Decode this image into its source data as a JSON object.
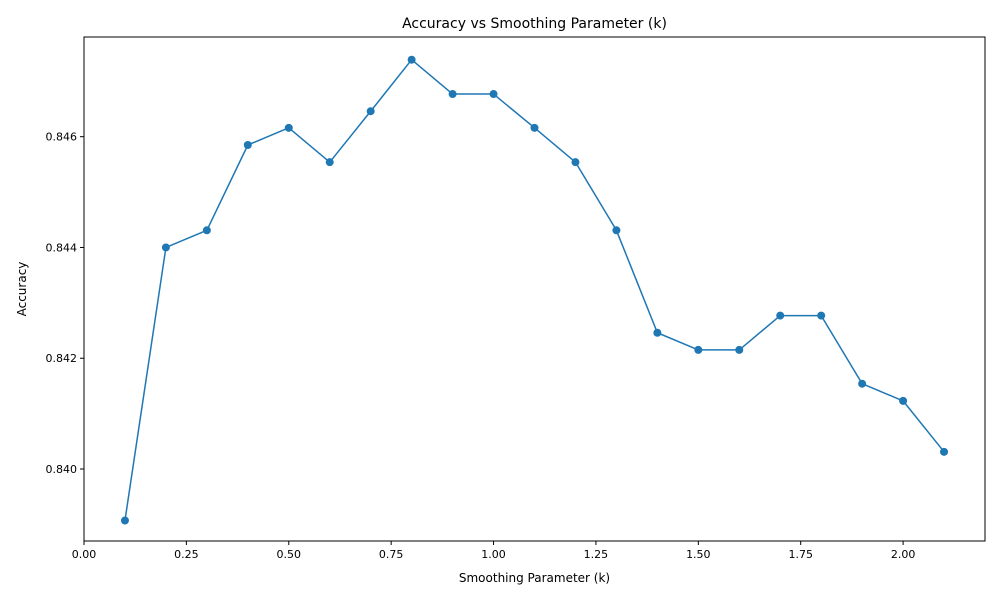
{
  "chart_data": {
    "type": "line",
    "title": "Accuracy vs Smoothing Parameter (k)",
    "xlabel": "Smoothing Parameter (k)",
    "ylabel": "Accuracy",
    "xlim": [
      0.0,
      2.2
    ],
    "ylim": [
      0.8387,
      0.8478
    ],
    "xticks": [
      0.0,
      0.25,
      0.5,
      0.75,
      1.0,
      1.25,
      1.5,
      1.75,
      2.0
    ],
    "xtick_labels": [
      "0.00",
      "0.25",
      "0.50",
      "0.75",
      "1.00",
      "1.25",
      "1.50",
      "1.75",
      "2.00"
    ],
    "yticks": [
      0.84,
      0.842,
      0.844,
      0.846
    ],
    "ytick_labels": [
      "0.840",
      "0.842",
      "0.844",
      "0.846"
    ],
    "grid": false,
    "line_color": "#1f77b4",
    "series": [
      {
        "x": [
          0.1,
          0.2,
          0.3,
          0.4,
          0.5,
          0.6,
          0.7,
          0.8,
          0.9,
          1.0,
          1.1,
          1.2,
          1.3,
          1.4,
          1.5,
          1.6,
          1.7,
          1.8,
          1.9,
          2.0,
          2.1
        ],
        "y": [
          0.83907,
          0.844,
          0.84431,
          0.84585,
          0.84616,
          0.84554,
          0.84646,
          0.84739,
          0.84677,
          0.84677,
          0.84616,
          0.84554,
          0.84431,
          0.84246,
          0.84215,
          0.84215,
          0.84277,
          0.84277,
          0.84154,
          0.84123,
          0.84031
        ]
      }
    ]
  }
}
